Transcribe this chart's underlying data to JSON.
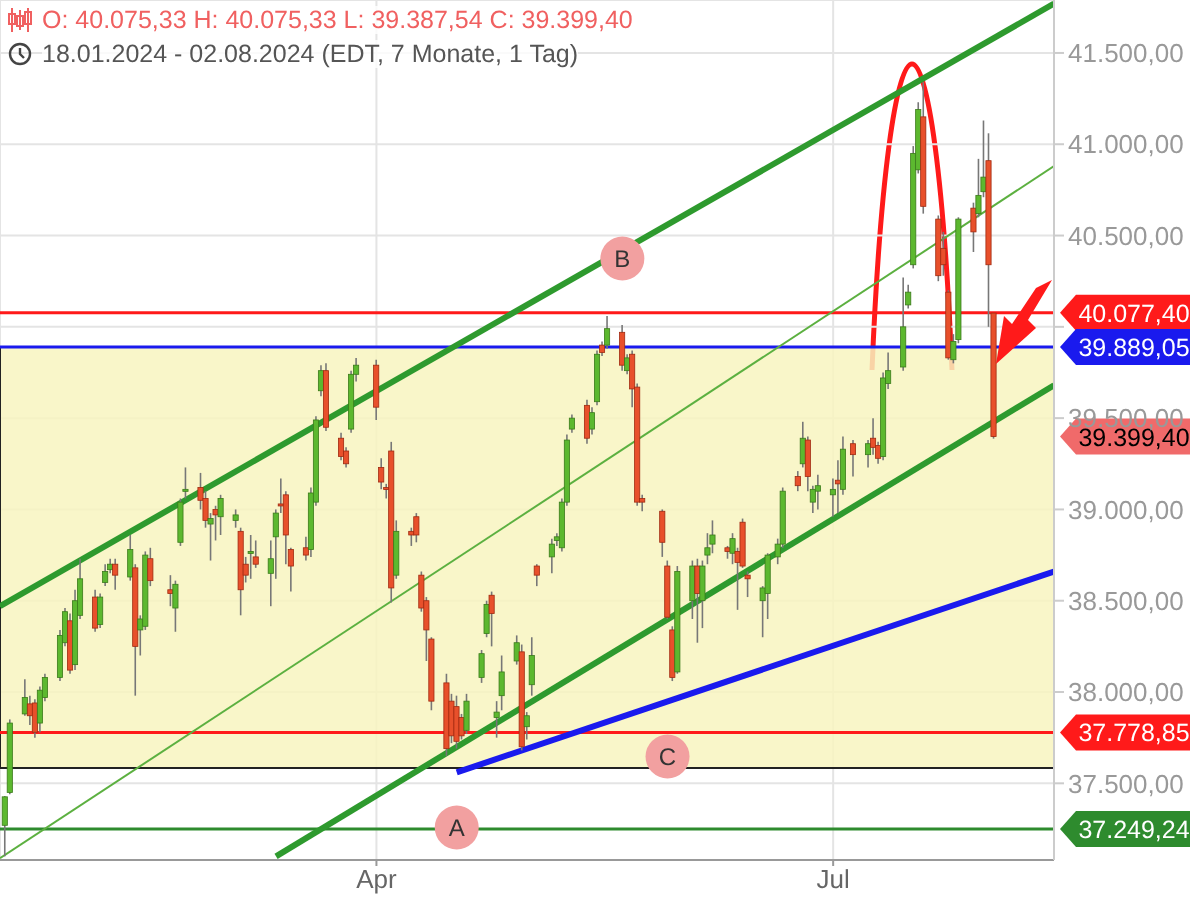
{
  "chart_data": {
    "type": "candlestick",
    "title": "O: 40.075,33  H: 40.075,33  L: 39.387,54  C: 39.399,40",
    "subtitle": "18.01.2024 - 02.08.2024  (EDT, 7 Monate, 1 Tag)",
    "x": [
      "2024-01-18",
      "2024-01-19",
      "2024-01-22",
      "2024-01-23",
      "2024-01-24",
      "2024-01-25",
      "2024-01-26",
      "2024-01-29",
      "2024-01-30",
      "2024-01-31",
      "2024-02-01",
      "2024-02-02",
      "2024-02-05",
      "2024-02-06",
      "2024-02-07",
      "2024-02-08",
      "2024-02-09",
      "2024-02-12",
      "2024-02-13",
      "2024-02-14",
      "2024-02-15",
      "2024-02-16",
      "2024-02-20",
      "2024-02-21",
      "2024-02-22",
      "2024-02-23",
      "2024-02-26",
      "2024-02-27",
      "2024-02-28",
      "2024-02-29",
      "2024-03-01",
      "2024-03-04",
      "2024-03-05",
      "2024-03-06",
      "2024-03-07",
      "2024-03-08",
      "2024-03-11",
      "2024-03-12",
      "2024-03-13",
      "2024-03-14",
      "2024-03-15",
      "2024-03-18",
      "2024-03-19",
      "2024-03-20",
      "2024-03-21",
      "2024-03-22",
      "2024-03-25",
      "2024-03-26",
      "2024-03-27",
      "2024-03-28",
      "2024-04-01",
      "2024-04-02",
      "2024-04-03",
      "2024-04-04",
      "2024-04-05",
      "2024-04-08",
      "2024-04-09",
      "2024-04-10",
      "2024-04-11",
      "2024-04-12",
      "2024-04-15",
      "2024-04-16",
      "2024-04-17",
      "2024-04-18",
      "2024-04-19",
      "2024-04-22",
      "2024-04-23",
      "2024-04-24",
      "2024-04-25",
      "2024-04-26",
      "2024-04-29",
      "2024-04-30",
      "2024-05-01",
      "2024-05-02",
      "2024-05-03",
      "2024-05-06",
      "2024-05-07",
      "2024-05-08",
      "2024-05-09",
      "2024-05-10",
      "2024-05-13",
      "2024-05-14",
      "2024-05-15",
      "2024-05-16",
      "2024-05-17",
      "2024-05-20",
      "2024-05-21",
      "2024-05-22",
      "2024-05-23",
      "2024-05-24",
      "2024-05-28",
      "2024-05-29",
      "2024-05-30",
      "2024-05-31",
      "2024-06-03",
      "2024-06-04",
      "2024-06-05",
      "2024-06-06",
      "2024-06-07",
      "2024-06-10",
      "2024-06-11",
      "2024-06-12",
      "2024-06-13",
      "2024-06-14",
      "2024-06-17",
      "2024-06-18",
      "2024-06-20",
      "2024-06-21",
      "2024-06-24",
      "2024-06-25",
      "2024-06-26",
      "2024-06-27",
      "2024-06-28",
      "2024-07-01",
      "2024-07-02",
      "2024-07-03",
      "2024-07-05",
      "2024-07-08",
      "2024-07-09",
      "2024-07-10",
      "2024-07-11",
      "2024-07-12",
      "2024-07-15",
      "2024-07-16",
      "2024-07-17",
      "2024-07-18",
      "2024-07-19",
      "2024-07-22",
      "2024-07-23",
      "2024-07-24",
      "2024-07-25",
      "2024-07-26",
      "2024-07-29",
      "2024-07-30",
      "2024-07-31",
      "2024-08-01",
      "2024-08-02"
    ],
    "ohlc": [
      [
        37270,
        37430,
        37100,
        37426
      ],
      [
        37450,
        37850,
        37440,
        37830
      ],
      [
        37880,
        38070,
        37870,
        37970
      ],
      [
        37935,
        37980,
        37820,
        37870
      ],
      [
        37940,
        37960,
        37750,
        37780
      ],
      [
        37830,
        38030,
        37780,
        38010
      ],
      [
        37970,
        38100,
        37950,
        38080
      ],
      [
        38080,
        38340,
        38060,
        38310
      ],
      [
        38270,
        38460,
        38250,
        38440
      ],
      [
        38390,
        38430,
        38100,
        38120
      ],
      [
        38150,
        38560,
        38120,
        38500
      ],
      [
        38420,
        38730,
        38400,
        38620
      ],
      [
        38520,
        38560,
        38330,
        38350
      ],
      [
        38370,
        38540,
        38350,
        38520
      ],
      [
        38600,
        38700,
        38580,
        38660
      ],
      [
        38670,
        38730,
        38650,
        38700
      ],
      [
        38700,
        38730,
        38560,
        38640
      ],
      [
        38630,
        38860,
        38610,
        38780
      ],
      [
        38680,
        38700,
        37980,
        38250
      ],
      [
        38340,
        38420,
        38200,
        38400
      ],
      [
        38360,
        38770,
        38340,
        38750
      ],
      [
        38730,
        38790,
        38580,
        38610
      ],
      [
        38560,
        38640,
        38470,
        38540
      ],
      [
        38460,
        38610,
        38330,
        38590
      ],
      [
        38820,
        39060,
        38800,
        39040
      ],
      [
        39100,
        39230,
        39060,
        39110
      ],
      [
        39120,
        39200,
        39000,
        39050
      ],
      [
        39060,
        39100,
        38900,
        38940
      ],
      [
        38920,
        38980,
        38720,
        38950
      ],
      [
        39000,
        39020,
        38830,
        38970
      ],
      [
        38960,
        39080,
        38860,
        39060
      ],
      [
        38940,
        39000,
        38900,
        38970
      ],
      [
        38880,
        38900,
        38420,
        38560
      ],
      [
        38700,
        38740,
        38600,
        38640
      ],
      [
        38760,
        38860,
        38620,
        38770
      ],
      [
        38740,
        38830,
        38680,
        38700
      ],
      [
        38650,
        38830,
        38470,
        38730
      ],
      [
        38850,
        39000,
        38620,
        38980
      ],
      [
        39030,
        39170,
        38980,
        39020
      ],
      [
        39080,
        39100,
        38700,
        38860
      ],
      [
        38780,
        38790,
        38550,
        38690
      ],
      [
        38790,
        38850,
        38720,
        38750
      ],
      [
        38780,
        39120,
        38740,
        39090
      ],
      [
        39040,
        39510,
        39020,
        39490
      ],
      [
        39650,
        39790,
        39620,
        39760
      ],
      [
        39760,
        39800,
        39430,
        39450
      ],
      [
        39390,
        39420,
        39270,
        39290
      ],
      [
        39320,
        39340,
        39230,
        39250
      ],
      [
        39440,
        39760,
        39420,
        39740
      ],
      [
        39740,
        39830,
        39700,
        39790
      ],
      [
        39790,
        39820,
        39490,
        39560
      ],
      [
        39230,
        39280,
        39110,
        39150
      ],
      [
        39120,
        39140,
        39060,
        39110
      ],
      [
        39320,
        39370,
        38490,
        38570
      ],
      [
        38640,
        38940,
        38620,
        38880
      ],
      [
        38880,
        38900,
        38800,
        38860
      ],
      [
        38960,
        38980,
        38820,
        38860
      ],
      [
        38640,
        38660,
        38440,
        38460
      ],
      [
        38500,
        38520,
        38170,
        38340
      ],
      [
        38290,
        38300,
        37900,
        37950
      ],
      [
        38050,
        38100,
        37650,
        37690
      ],
      [
        37950,
        37990,
        37720,
        37760
      ],
      [
        37920,
        37980,
        37690,
        37730
      ],
      [
        37860,
        37880,
        37740,
        37760
      ],
      [
        37790,
        37990,
        37770,
        37950
      ],
      [
        38080,
        38230,
        38050,
        38210
      ],
      [
        38320,
        38500,
        38300,
        38480
      ],
      [
        38530,
        38550,
        38250,
        38430
      ],
      [
        37860,
        37950,
        37750,
        37890
      ],
      [
        37980,
        38200,
        37900,
        38110
      ],
      [
        38170,
        38310,
        38150,
        38270
      ],
      [
        38220,
        38260,
        37680,
        37700
      ],
      [
        37810,
        37890,
        37740,
        37870
      ],
      [
        38040,
        38300,
        37980,
        38200
      ],
      [
        38690,
        38700,
        38580,
        38640
      ],
      [
        38740,
        38840,
        38650,
        38810
      ],
      [
        38830,
        38870,
        38800,
        38850
      ],
      [
        38790,
        39060,
        38770,
        39040
      ],
      [
        39040,
        39410,
        39020,
        39380
      ],
      [
        39440,
        39520,
        39420,
        39500
      ],
      [
        39570,
        39600,
        39360,
        39390
      ],
      [
        39440,
        39560,
        39410,
        39530
      ],
      [
        39590,
        39870,
        39570,
        39850
      ],
      [
        39900,
        39920,
        39840,
        39860
      ],
      [
        39900,
        40060,
        39880,
        39990
      ],
      [
        39970,
        40010,
        39760,
        39790
      ],
      [
        39760,
        39850,
        39740,
        39830
      ],
      [
        39850,
        39870,
        39560,
        39660
      ],
      [
        39670,
        39690,
        39020,
        39040
      ],
      [
        39060,
        39080,
        38990,
        39040
      ],
      [
        38990,
        39000,
        38740,
        38820
      ],
      [
        38690,
        38720,
        38400,
        38410
      ],
      [
        38340,
        38360,
        38060,
        38080
      ],
      [
        38110,
        38690,
        38100,
        38660
      ],
      [
        38500,
        38720,
        38400,
        38690
      ],
      [
        38690,
        38730,
        38270,
        38540
      ],
      [
        38500,
        38720,
        38350,
        38690
      ],
      [
        38750,
        38870,
        38700,
        38790
      ],
      [
        38810,
        38940,
        38760,
        38860
      ],
      [
        38790,
        38800,
        38730,
        38770
      ],
      [
        38760,
        38870,
        38700,
        38840
      ],
      [
        38770,
        38790,
        38450,
        38710
      ],
      [
        38930,
        38950,
        38680,
        38690
      ],
      [
        38640,
        38660,
        38520,
        38620
      ],
      [
        38500,
        38580,
        38300,
        38570
      ],
      [
        38540,
        38760,
        38400,
        38750
      ],
      [
        38740,
        38840,
        38700,
        38810
      ],
      [
        38810,
        39120,
        38790,
        39100
      ],
      [
        39180,
        39210,
        39100,
        39130
      ],
      [
        39250,
        39480,
        39230,
        39390
      ],
      [
        39380,
        39400,
        39100,
        39180
      ],
      [
        39040,
        39130,
        38980,
        39110
      ],
      [
        39100,
        39190,
        39000,
        39130
      ],
      [
        39080,
        39170,
        38960,
        39110
      ],
      [
        39160,
        39270,
        38980,
        39140
      ],
      [
        39110,
        39400,
        39080,
        39330
      ],
      [
        39360,
        39380,
        39180,
        39300
      ],
      [
        39300,
        39380,
        39230,
        39360
      ],
      [
        39390,
        39500,
        39300,
        39340
      ],
      [
        39350,
        39370,
        39250,
        39280
      ],
      [
        39290,
        39750,
        39270,
        39720
      ],
      [
        39690,
        39860,
        39660,
        39760
      ],
      [
        39780,
        40270,
        39760,
        40000
      ],
      [
        40120,
        40230,
        40100,
        40190
      ],
      [
        40340,
        40990,
        40320,
        40950
      ],
      [
        40860,
        41230,
        40840,
        41190
      ],
      [
        41150,
        41340,
        40620,
        40660
      ],
      [
        40590,
        40610,
        40250,
        40280
      ],
      [
        40430,
        40520,
        40280,
        40340
      ],
      [
        40190,
        40200,
        39820,
        39830
      ],
      [
        39820,
        39960,
        39800,
        39920
      ],
      [
        39930,
        40600,
        39910,
        40590
      ],
      [
        40650,
        40680,
        40410,
        40520
      ],
      [
        40620,
        40920,
        40600,
        40720
      ],
      [
        40740,
        41130,
        40710,
        40820
      ],
      [
        40910,
        41060,
        40000,
        40340
      ],
      [
        40075.33,
        40075.33,
        39387.54,
        39399.4
      ]
    ],
    "value_labels": [
      null,
      null,
      null,
      null,
      null,
      null,
      null,
      null,
      null,
      null,
      null,
      null,
      null,
      null,
      null,
      null,
      null,
      null,
      null,
      null,
      null,
      null,
      null,
      null,
      null,
      null,
      null,
      null,
      null,
      null,
      null,
      null,
      null,
      null,
      null,
      null,
      null,
      null,
      null,
      null,
      null,
      null,
      null,
      null,
      null,
      null,
      null,
      null,
      null,
      null,
      null,
      null,
      null,
      null,
      null,
      null,
      null,
      null,
      null,
      null,
      null,
      null,
      null,
      null,
      null,
      null,
      null,
      null,
      null,
      null,
      null,
      null,
      null,
      null,
      null,
      null,
      null,
      null,
      null,
      null,
      null,
      null,
      null,
      null,
      null,
      null,
      null,
      null,
      null,
      null,
      null,
      null,
      null,
      null,
      null,
      null,
      null,
      null,
      null,
      null,
      null,
      null,
      null,
      null,
      null,
      null,
      null,
      null,
      null,
      null,
      null,
      null,
      null,
      null,
      null,
      null,
      null,
      null,
      null,
      null,
      null,
      null,
      null,
      null,
      null,
      null,
      null,
      null,
      null,
      null,
      null,
      null,
      null,
      null,
      null,
      null,
      "39.399,40"
    ],
    "colors": [
      "#5cb82f",
      "#5cb82f",
      "#5cb82f",
      "#e8502b",
      "#e8502b",
      "#5cb82f",
      "#5cb82f",
      "#5cb82f",
      "#5cb82f",
      "#e8502b",
      "#5cb82f",
      "#5cb82f",
      "#e8502b",
      "#5cb82f",
      "#5cb82f",
      "#5cb82f",
      "#e8502b",
      "#5cb82f",
      "#e8502b",
      "#5cb82f",
      "#5cb82f",
      "#e8502b",
      "#e8502b",
      "#5cb82f",
      "#5cb82f",
      "#5cb82f",
      "#e8502b",
      "#e8502b",
      "#5cb82f",
      "#e8502b",
      "#5cb82f",
      "#5cb82f",
      "#e8502b",
      "#e8502b",
      "#5cb82f",
      "#e8502b",
      "#5cb82f",
      "#5cb82f",
      "#e8502b",
      "#e8502b",
      "#e8502b",
      "#e8502b",
      "#5cb82f",
      "#5cb82f",
      "#5cb82f",
      "#e8502b",
      "#e8502b",
      "#e8502b",
      "#5cb82f",
      "#5cb82f",
      "#e8502b",
      "#e8502b",
      "#e8502b",
      "#e8502b",
      "#5cb82f",
      "#e8502b",
      "#e8502b",
      "#e8502b",
      "#e8502b",
      "#e8502b",
      "#e8502b",
      "#e8502b",
      "#e8502b",
      "#e8502b",
      "#5cb82f",
      "#5cb82f",
      "#5cb82f",
      "#e8502b",
      "#5cb82f",
      "#5cb82f",
      "#5cb82f",
      "#e8502b",
      "#5cb82f",
      "#5cb82f",
      "#e8502b",
      "#5cb82f",
      "#5cb82f",
      "#5cb82f",
      "#5cb82f",
      "#5cb82f",
      "#e8502b",
      "#5cb82f",
      "#5cb82f",
      "#e8502b",
      "#5cb82f",
      "#e8502b",
      "#5cb82f",
      "#e8502b",
      "#e8502b",
      "#e8502b",
      "#e8502b",
      "#e8502b",
      "#e8502b",
      "#5cb82f",
      "#5cb82f",
      "#e8502b",
      "#5cb82f",
      "#5cb82f",
      "#5cb82f",
      "#e8502b",
      "#5cb82f",
      "#e8502b",
      "#e8502b",
      "#e8502b",
      "#5cb82f",
      "#5cb82f",
      "#5cb82f",
      "#5cb82f",
      "#e8502b",
      "#5cb82f",
      "#e8502b",
      "#5cb82f",
      "#5cb82f",
      "#5cb82f",
      "#e8502b",
      "#5cb82f",
      "#e8502b",
      "#5cb82f",
      "#e8502b",
      "#e8502b",
      "#5cb82f",
      "#5cb82f",
      "#5cb82f",
      "#5cb82f",
      "#5cb82f",
      "#5cb82f",
      "#e8502b",
      "#e8502b",
      "#e8502b",
      "#e8502b",
      "#5cb82f",
      "#5cb82f",
      "#e8502b",
      "#5cb82f",
      "#5cb82f",
      "#e8502b",
      "#e8502b"
    ],
    "series": [
      {
        "type": "line",
        "color": "#2e9a2e",
        "x": [
          "2024-01-17",
          "2024-08-14"
        ],
        "values": [
          38470,
          41770
        ]
      },
      {
        "type": "line",
        "color": "#2e9a2e",
        "x": [
          "2024-03-12",
          "2024-08-14"
        ],
        "values": [
          37100,
          39680
        ]
      },
      {
        "type": "line",
        "color": "#5cb040",
        "x": [
          "2024-01-17",
          "2024-08-14"
        ],
        "values": [
          37090,
          40880
        ]
      },
      {
        "type": "line",
        "color": "#1a1aee",
        "x": [
          "2024-04-17",
          "2024-08-14"
        ],
        "values": [
          37560,
          38660
        ]
      }
    ],
    "ref_lines": [
      {
        "axis": "y",
        "value": 40077.4,
        "label": "40.077,40",
        "color": "#ff1a1a"
      },
      {
        "axis": "y",
        "value": 39889.05,
        "label": "39.889,05",
        "color": "#1a1aee"
      },
      {
        "axis": "y",
        "value": 37778.85,
        "label": "37.778,85",
        "color": "#ff1a1a"
      },
      {
        "axis": "y",
        "value": 37249.24,
        "label": "37.249,24",
        "color": "#2e8b2e"
      }
    ],
    "bands": [
      {
        "axis": "y",
        "from": 37584,
        "to": 39889.05,
        "color": "#f8f4c0"
      }
    ],
    "annotations": [
      {
        "text": "A",
        "x": "2024-04-17",
        "y": 37258
      },
      {
        "text": "B",
        "x": "2024-05-20",
        "y": 40374
      },
      {
        "text": "C",
        "x": "2024-05-29",
        "y": 37647
      }
    ],
    "xlim": [
      "2024-01-17",
      "2024-08-14"
    ],
    "xticks": [
      {
        "value": "2024-04-01",
        "label": "Apr"
      },
      {
        "value": "2024-07-01",
        "label": "Jul"
      }
    ],
    "ylim": [
      37080,
      41790
    ],
    "yticks": [
      {
        "value": 37500,
        "label": "37.500,00"
      },
      {
        "value": 38000,
        "label": "38.000,00"
      },
      {
        "value": 38500,
        "label": "38.500,00"
      },
      {
        "value": 39000,
        "label": "39.000,00"
      },
      {
        "value": 39500,
        "label": "39.500,00"
      },
      {
        "value": 40000,
        "label": null
      },
      {
        "value": 40500,
        "label": "40.500,00"
      },
      {
        "value": 41000,
        "label": "41.000,00"
      },
      {
        "value": 41500,
        "label": "41.500,00"
      }
    ],
    "grid": true
  }
}
